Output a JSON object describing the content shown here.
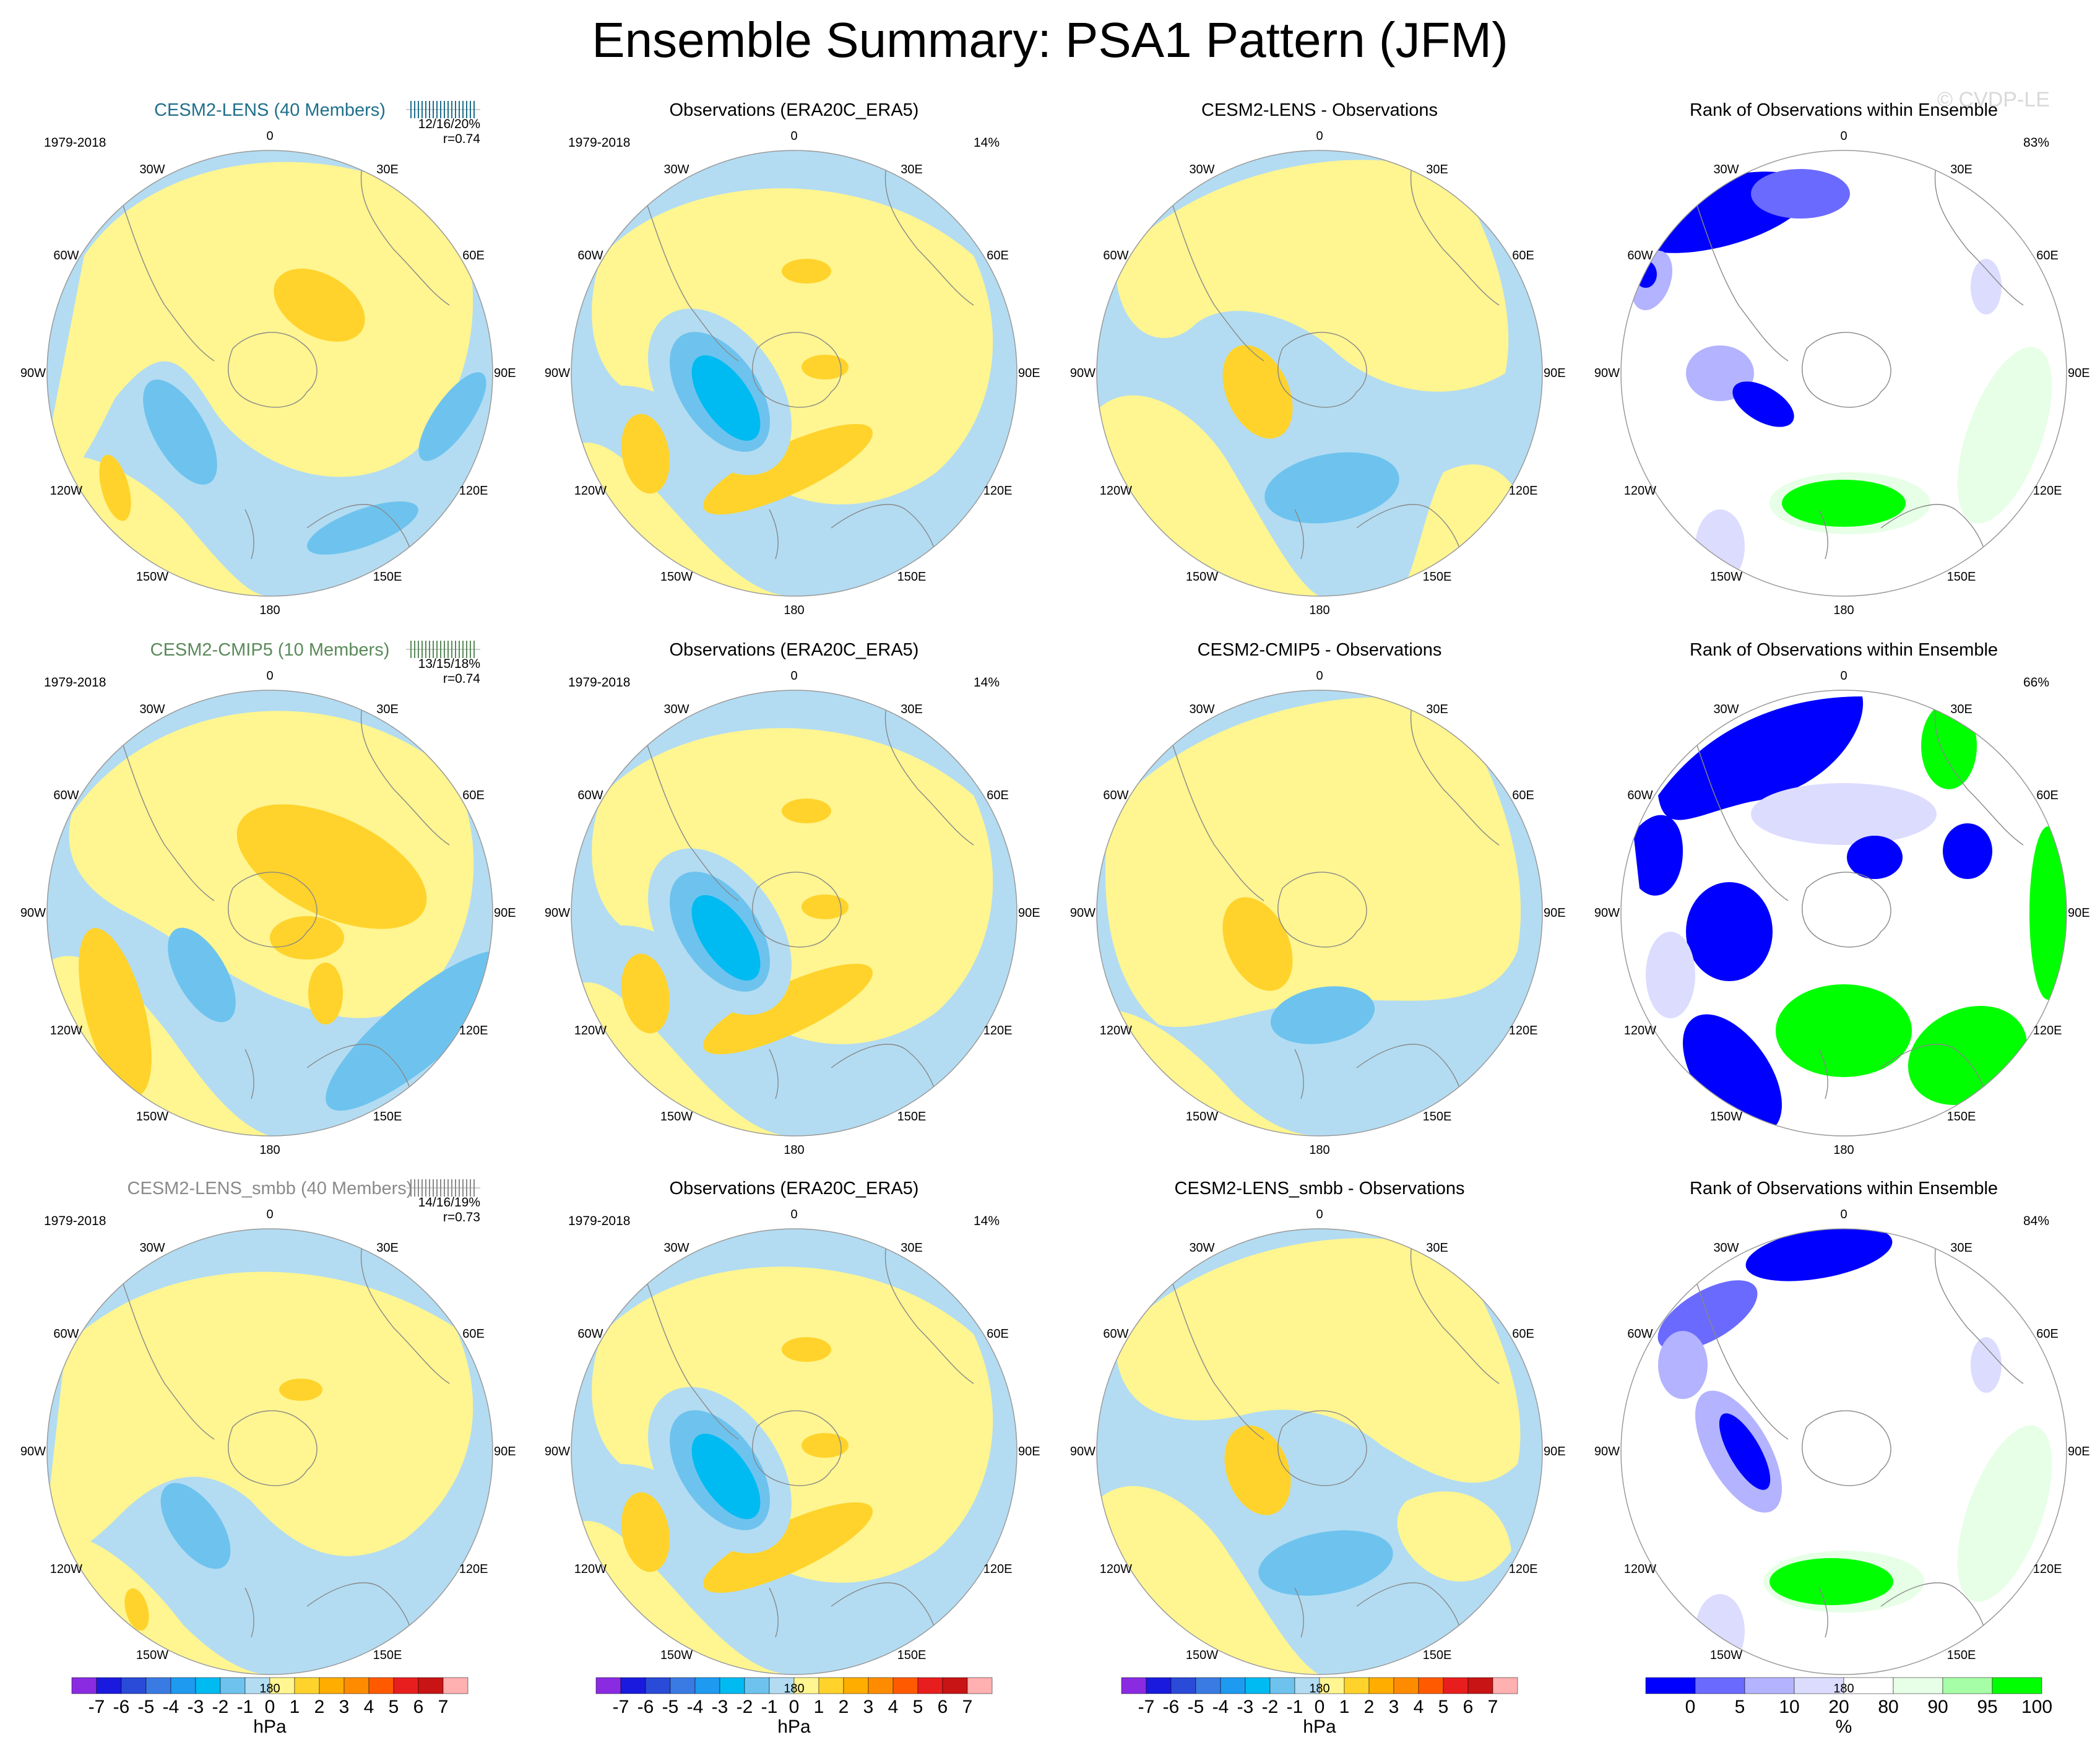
{
  "title": "Ensemble Summary: PSA1 Pattern (JFM)",
  "watermark": "© CVDP-LE",
  "colors": {
    "model_title_lens": "#1f6f8b",
    "model_title_cmip5": "#5a8a5a",
    "model_title_smbb": "#8a8a8a",
    "neg1": "#b3dcf2",
    "neg2": "#6ec3ee",
    "neg3": "#00bbf2",
    "pos1": "#fff591",
    "pos2": "#ffd32b",
    "pos3": "#ffae00"
  },
  "longitude_labels": [
    "0",
    "30E",
    "60E",
    "90E",
    "120E",
    "150E",
    "180",
    "150W",
    "120W",
    "90W",
    "60W",
    "30W"
  ],
  "rows": [
    {
      "model_title": "CESM2-LENS (40 Members)",
      "model_period": "1979-2018",
      "model_stats": "12/16/20%",
      "model_r": "r=0.74",
      "obs_title": "Observations (ERA20C_ERA5)",
      "obs_period": "1979-2018",
      "obs_pct": "14%",
      "diff_title": "CESM2-LENS - Observations",
      "rank_title": "Rank of Observations within Ensemble",
      "rank_pct": "83%"
    },
    {
      "model_title": "CESM2-CMIP5 (10 Members)",
      "model_period": "1979-2018",
      "model_stats": "13/15/18%",
      "model_r": "r=0.74",
      "obs_title": "Observations (ERA20C_ERA5)",
      "obs_period": "1979-2018",
      "obs_pct": "14%",
      "diff_title": "CESM2-CMIP5 - Observations",
      "rank_title": "Rank of Observations within Ensemble",
      "rank_pct": "66%"
    },
    {
      "model_title": "CESM2-LENS_smbb (40 Members)",
      "model_period": "1979-2018",
      "model_stats": "14/16/19%",
      "model_r": "r=0.73",
      "obs_title": "Observations (ERA20C_ERA5)",
      "obs_period": "1979-2018",
      "obs_pct": "14%",
      "diff_title": "CESM2-LENS_smbb - Observations",
      "rank_title": "Rank of Observations within Ensemble",
      "rank_pct": "84%"
    }
  ],
  "colorbar_hpa": {
    "unit": "hPa",
    "labels": [
      "-7",
      "-6",
      "-5",
      "-4",
      "-3",
      "-2",
      "-1",
      "0",
      "1",
      "2",
      "3",
      "4",
      "5",
      "6",
      "7"
    ],
    "colors": [
      "#8a2be2",
      "#1a1adf",
      "#2a4bd7",
      "#3a7be3",
      "#1e9af0",
      "#00bbf2",
      "#6ec3ee",
      "#b3dcf2",
      "#fff591",
      "#ffd32b",
      "#ffae00",
      "#ff8c00",
      "#ff5a00",
      "#e81e1e",
      "#c81414",
      "#ffb0b0"
    ]
  },
  "colorbar_rank": {
    "unit": "%",
    "labels": [
      "0",
      "5",
      "10",
      "20",
      "80",
      "90",
      "95",
      "100"
    ],
    "colors": [
      "#0000ff",
      "#6a6aff",
      "#b3b3ff",
      "#dcdcff",
      "#ffffff",
      "#e6ffe6",
      "#a6ffa6",
      "#00ff00"
    ]
  }
}
